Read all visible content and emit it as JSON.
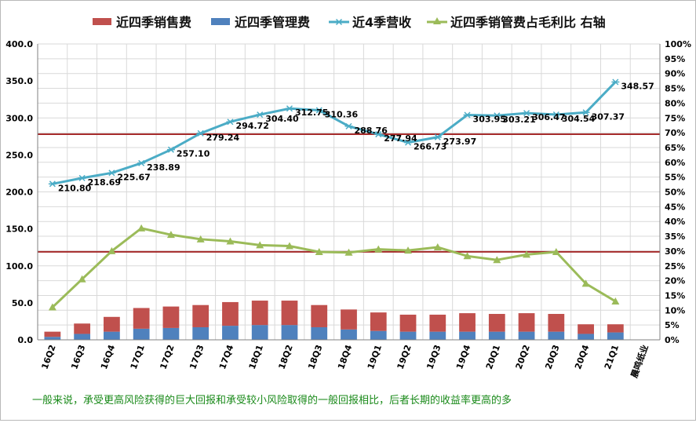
{
  "chart_data": {
    "type": "bar+line",
    "categories": [
      "16Q2",
      "16Q3",
      "16Q4",
      "17Q1",
      "17Q2",
      "17Q3",
      "17Q4",
      "18Q1",
      "18Q2",
      "18Q3",
      "18Q4",
      "19Q1",
      "19Q2",
      "19Q3",
      "19Q4",
      "20Q1",
      "20Q2",
      "20Q3",
      "20Q4",
      "21Q1",
      "晨鸣纸业"
    ],
    "series": [
      {
        "name": "近四季销售费",
        "kind": "bar",
        "axis": "left",
        "color": "#c0504d",
        "values": [
          7,
          14,
          20,
          28,
          29,
          30,
          32,
          33,
          33,
          30,
          27,
          25,
          23,
          23,
          25,
          24,
          25,
          24,
          13,
          11,
          null
        ]
      },
      {
        "name": "近四季管理费",
        "kind": "bar",
        "axis": "left",
        "color": "#4f81bd",
        "values": [
          4,
          8,
          11,
          15,
          16,
          17,
          19,
          20,
          20,
          17,
          14,
          12,
          11,
          11,
          11,
          11,
          11,
          11,
          8,
          10,
          null
        ]
      },
      {
        "name": "近4季营收",
        "kind": "line",
        "axis": "left",
        "color": "#4bacc6",
        "values": [
          210.8,
          218.69,
          225.67,
          238.89,
          257.1,
          279.24,
          294.72,
          304.4,
          312.75,
          310.36,
          288.76,
          277.94,
          266.73,
          273.97,
          303.95,
          303.21,
          306.47,
          304.54,
          307.37,
          348.57,
          null
        ],
        "labels": [
          "210.80",
          "218.69",
          "225.67",
          "238.89",
          "257.10",
          "279.24",
          "294.72",
          "304.40",
          "312.75",
          "310.36",
          "288.76",
          "277.94",
          "266.73",
          "273.97",
          "303.95",
          "303.21",
          "306.47",
          "304.54",
          "307.37",
          "348.57",
          ""
        ]
      },
      {
        "name": "近四季销管费占毛利比 右轴",
        "kind": "line",
        "axis": "right",
        "color": "#9bbb59",
        "values": [
          0.11,
          0.205,
          0.3,
          0.377,
          0.355,
          0.34,
          0.333,
          0.32,
          0.317,
          0.297,
          0.295,
          0.306,
          0.302,
          0.313,
          0.283,
          0.27,
          0.288,
          0.297,
          0.19,
          0.13,
          null
        ]
      }
    ],
    "reference_lines_left": [
      278,
      119
    ],
    "reference_line_color": "#a52a2a",
    "y_left": {
      "min": 0,
      "max": 400,
      "ticks": [
        "0.0",
        "50.0",
        "100.0",
        "150.0",
        "200.0",
        "250.0",
        "300.0",
        "350.0",
        "400.0"
      ]
    },
    "y_right": {
      "min": 0,
      "max": 1,
      "ticks": [
        "0%",
        "5%",
        "10%",
        "15%",
        "20%",
        "25%",
        "30%",
        "35%",
        "40%",
        "45%",
        "50%",
        "55%",
        "60%",
        "65%",
        "70%",
        "75%",
        "80%",
        "85%",
        "90%",
        "95%",
        "100%"
      ]
    },
    "grid": true,
    "legend_position": "top",
    "footnote": "一般来说，承受更高风险获得的巨大回报和承受较小风险取得的一般回报相比，后者长期的收益率更高的多"
  }
}
